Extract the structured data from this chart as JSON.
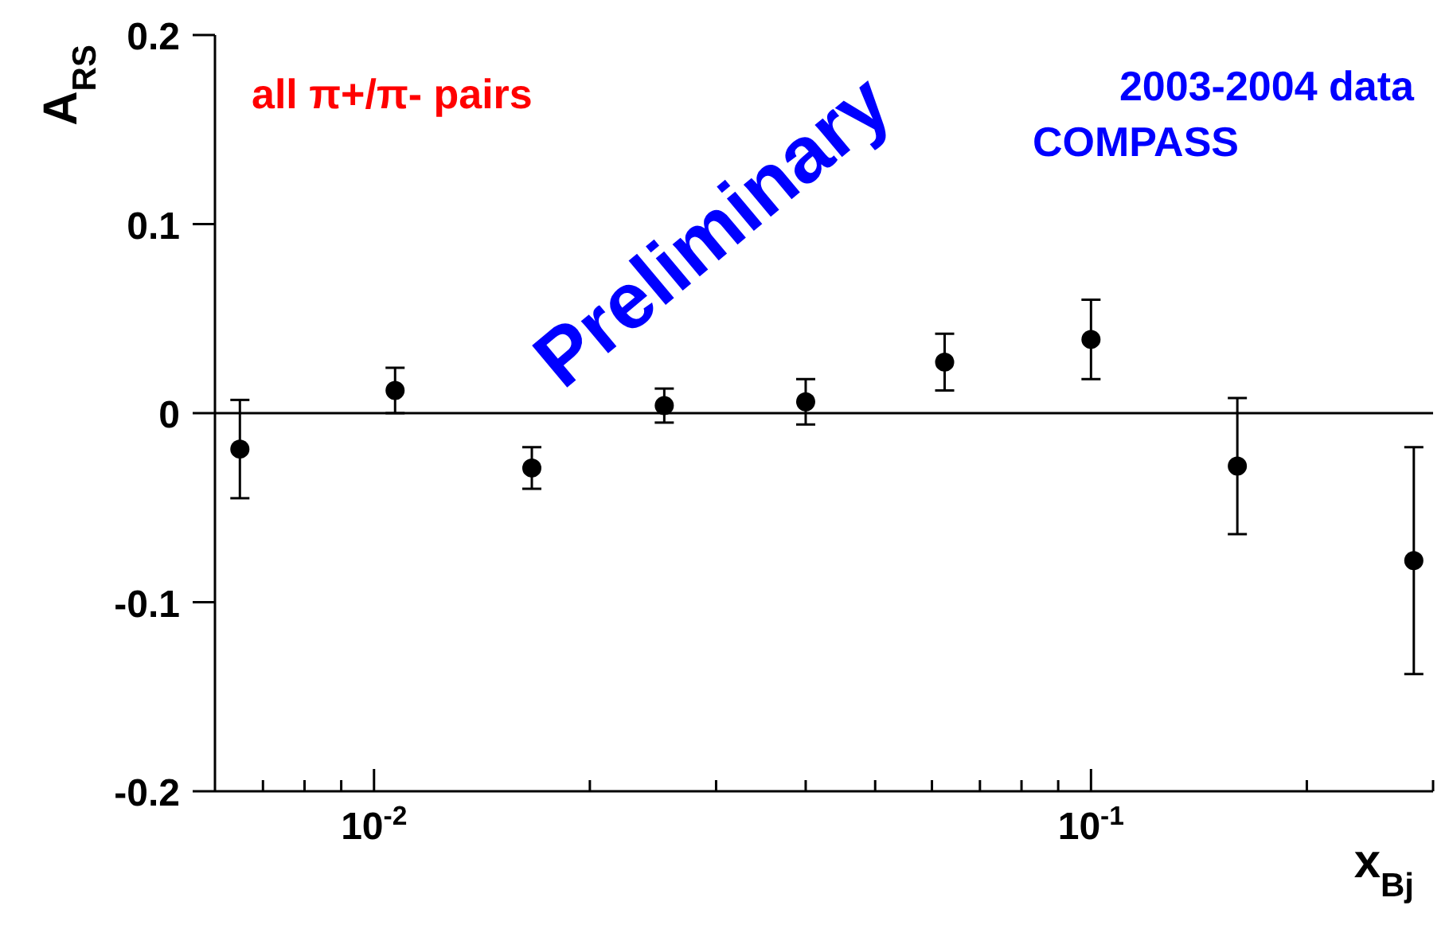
{
  "chart_data": {
    "type": "scatter",
    "xlabel": "x$_{Bj}$",
    "ylabel": "A$_{RS}$",
    "annotations": [
      "all π+/π- pairs",
      "2003-2004 data",
      "COMPASS",
      "Preliminary"
    ],
    "log": "x",
    "marker": "circle",
    "xlim": [
      0.006,
      0.3
    ],
    "xticks": [
      {
        "value": 0.007,
        "label": null
      },
      {
        "value": 0.008,
        "label": null
      },
      {
        "value": 0.009,
        "label": null
      },
      {
        "value": 0.01,
        "label": "10$^{-2}$"
      },
      {
        "value": 0.02,
        "label": null
      },
      {
        "value": 0.03,
        "label": null
      },
      {
        "value": 0.04,
        "label": null
      },
      {
        "value": 0.05,
        "label": null
      },
      {
        "value": 0.06,
        "label": null
      },
      {
        "value": 0.07,
        "label": null
      },
      {
        "value": 0.08,
        "label": null
      },
      {
        "value": 0.09,
        "label": null
      },
      {
        "value": 0.1,
        "label": "10$^{-1}$"
      },
      {
        "value": 0.2,
        "label": null
      },
      {
        "value": 0.3,
        "label": null
      }
    ],
    "ylim": [
      -0.2,
      0.2
    ],
    "yticks": [
      -0.2,
      -0.1,
      0,
      0.1,
      0.2
    ],
    "ref_lines": [
      {
        "axis": "y",
        "value": 0,
        "color": "#000000"
      }
    ],
    "series": [
      {
        "color": "#000000",
        "x": [
          0.0065,
          0.0107,
          0.0166,
          0.0254,
          0.04,
          0.0625,
          0.1,
          0.16,
          0.282
        ],
        "values": [
          -0.019,
          0.012,
          -0.029,
          0.004,
          0.006,
          0.027,
          0.039,
          -0.028,
          -0.078
        ],
        "errors": [
          0.026,
          0.012,
          0.011,
          0.009,
          0.012,
          0.015,
          0.021,
          0.036,
          0.06
        ]
      }
    ]
  }
}
